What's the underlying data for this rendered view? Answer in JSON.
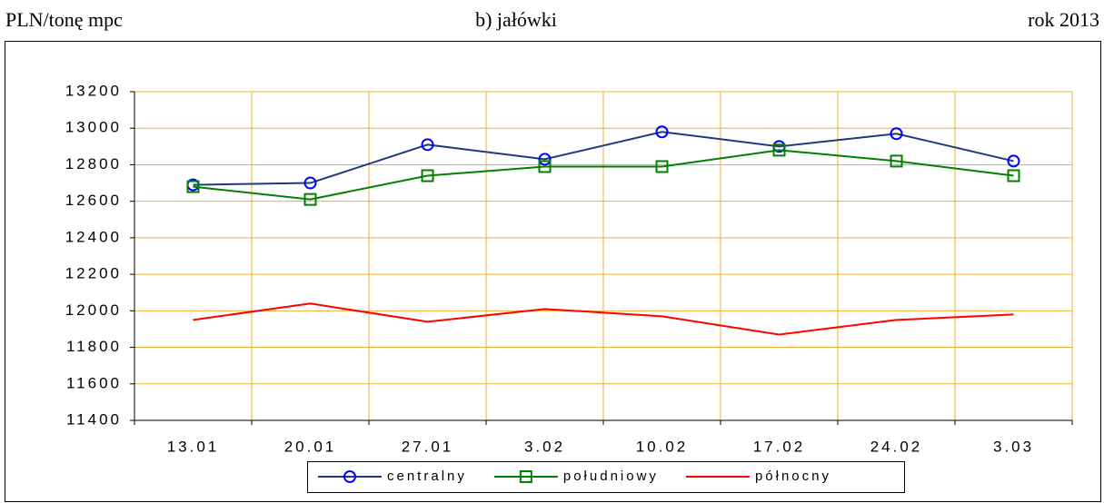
{
  "chart_data": {
    "type": "line",
    "unit_label": "PLN/tonę mpc",
    "title": "b) jałówki",
    "year_label": "rok 2013",
    "categories": [
      "13.01",
      "20.01",
      "27.01",
      "3.02",
      "10.02",
      "17.02",
      "24.02",
      "3.03"
    ],
    "series": [
      {
        "name": "centralny",
        "color": "#1f3a7a",
        "marker": "circle",
        "marker_color": "#0000ff",
        "values": [
          12690,
          12700,
          12910,
          12830,
          12980,
          12900,
          12970,
          12820
        ]
      },
      {
        "name": "południowy",
        "color": "#008000",
        "marker": "square",
        "marker_color": "#008000",
        "values": [
          12680,
          12610,
          12740,
          12790,
          12790,
          12880,
          12820,
          12740
        ]
      },
      {
        "name": "północny",
        "color": "#ff0000",
        "marker": "none",
        "marker_color": "#ff0000",
        "values": [
          11950,
          12040,
          11940,
          12010,
          11970,
          11870,
          11950,
          11980
        ]
      }
    ],
    "ylim": [
      11400,
      13200
    ],
    "yticks": [
      11400,
      11600,
      11800,
      12000,
      12200,
      12400,
      12600,
      12800,
      13000,
      13200
    ],
    "grid": true,
    "grid_color": "#f0b030",
    "legend": "bottom"
  }
}
